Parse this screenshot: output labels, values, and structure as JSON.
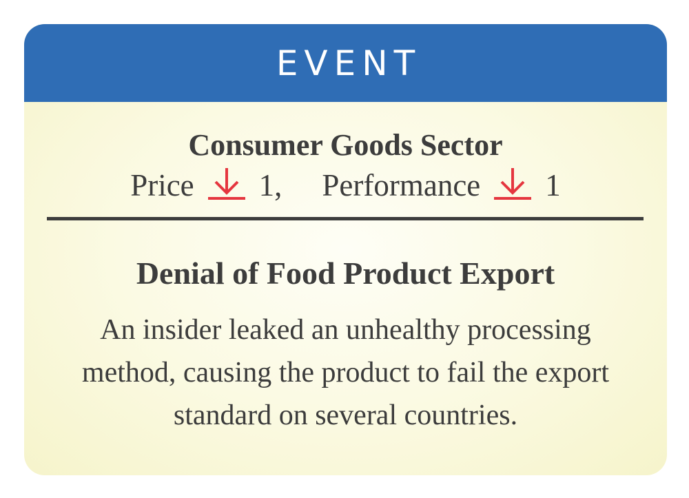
{
  "card": {
    "type_label": "EVENT",
    "sector": "Consumer Goods Sector",
    "effects": [
      {
        "label": "Price",
        "direction": "down",
        "icon": "arrow-down-icon",
        "amount": "1",
        "separator": ","
      },
      {
        "label": "Performance",
        "direction": "down",
        "icon": "arrow-down-icon",
        "amount": "1",
        "separator": ""
      }
    ],
    "title": "Denial of Food Product Export",
    "description": "An insider leaked an unhealthy processing method, causing the product to fail the export standard on several countries."
  },
  "colors": {
    "header": "#2f6db5",
    "arrow": "#e5363f",
    "text": "#3c3c3c",
    "background": "#fbfae3"
  }
}
